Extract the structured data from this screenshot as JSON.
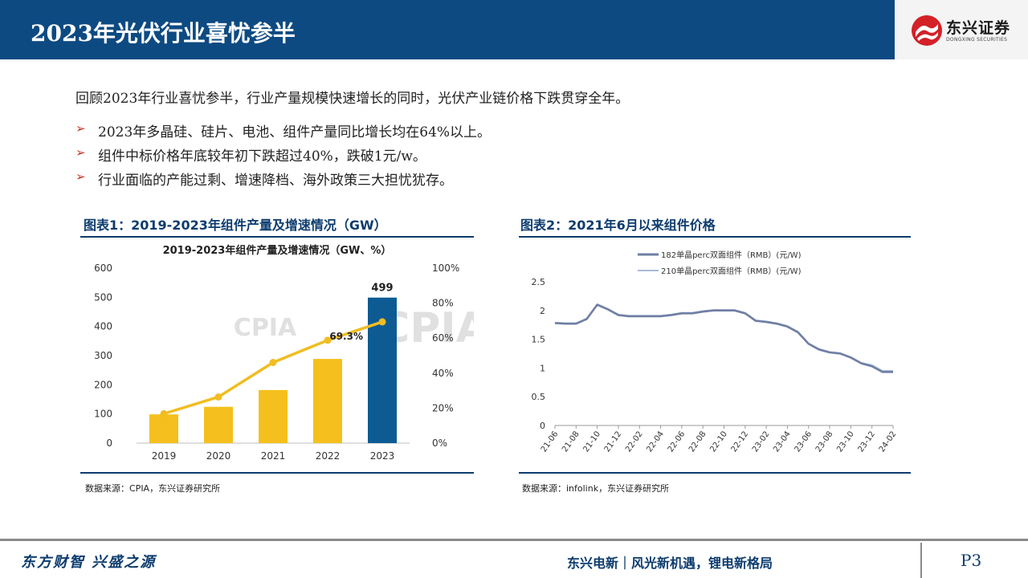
{
  "header": {
    "title": "2023年光伏行业喜忧参半",
    "logo_cn": "东兴证券",
    "logo_en": "DONGXING SECURITIES"
  },
  "intro": "回顾2023年行业喜忧参半，行业产量规模快速增长的同时，光伏产业链价格下跌贯穿全年。",
  "bullets": [
    "2023年多晶硅、硅片、电池、组件产量同比增长均在64%以上。",
    "组件中标价格年底较年初下跌超过40%，跌破1元/w。",
    "行业面临的产能过剩、增速降档、海外政策三大担忧犹存。"
  ],
  "bullet_symbol": "➢",
  "chart1": {
    "panel_title": "图表1：2019-2023年组件产量及增速情况（GW）",
    "source": "数据来源：CPIA，东兴证券研究所"
  },
  "chart2": {
    "panel_title": "图表2：2021年6月以来组件价格",
    "source": "数据来源：infolink，东兴证券研究所"
  },
  "chart_data": [
    {
      "type": "bar",
      "title": "2019-2023年组件产量及增速情况（GW、%）",
      "categories": [
        "2019",
        "2020",
        "2021",
        "2022",
        "2023"
      ],
      "series": [
        {
          "name": "",
          "kind": "bar",
          "axis": "left",
          "values": [
            98.6,
            124.6,
            182,
            288.7,
            499
          ]
        },
        {
          "name": "",
          "kind": "line",
          "axis": "right",
          "values": [
            16.8,
            26.4,
            46.1,
            58.8,
            69.3
          ]
        }
      ],
      "data_labels": [
        {
          "series": 0,
          "index": 4,
          "text": "499"
        },
        {
          "series": 1,
          "index": 4,
          "text": "69.3%"
        }
      ],
      "yticks_left": [
        "0",
        "100",
        "200",
        "300",
        "400",
        "500",
        "600"
      ],
      "yticks_right": [
        "0%",
        "20%",
        "40%",
        "60%",
        "80%",
        "100%"
      ],
      "ylim_left": [
        0,
        600
      ],
      "ylim_right": [
        0,
        100
      ],
      "watermark": "CPIA",
      "colors": {
        "bar": "#f5c01d",
        "bar_highlight": "#0e5b94",
        "line": "#f0bd22",
        "watermark": "#c8c8c8"
      },
      "grid": false
    },
    {
      "type": "line",
      "title": "",
      "x": [
        "21-06",
        "21-07",
        "21-08",
        "21-09",
        "21-10",
        "21-11",
        "21-12",
        "22-01",
        "22-02",
        "22-03",
        "22-04",
        "22-05",
        "22-06",
        "22-07",
        "22-08",
        "22-09",
        "22-10",
        "22-11",
        "22-12",
        "23-01",
        "23-02",
        "23-03",
        "23-04",
        "23-05",
        "23-06",
        "23-07",
        "23-08",
        "23-09",
        "23-10",
        "23-11",
        "23-12",
        "24-01",
        "24-02"
      ],
      "xticks": [
        "21-06",
        "21-08",
        "21-10",
        "21-12",
        "22-02",
        "22-04",
        "22-06",
        "22-08",
        "22-10",
        "22-12",
        "23-02",
        "23-04",
        "23-06",
        "23-08",
        "23-10",
        "23-12",
        "24-02"
      ],
      "series": [
        {
          "name": "182单晶perc双面组件（RMB）(元/W)",
          "values": [
            1.78,
            1.77,
            1.77,
            1.85,
            2.1,
            2.02,
            1.92,
            1.9,
            1.9,
            1.9,
            1.9,
            1.92,
            1.95,
            1.95,
            1.98,
            2.0,
            2.0,
            2.0,
            1.95,
            1.82,
            1.8,
            1.77,
            1.72,
            1.62,
            1.42,
            1.32,
            1.27,
            1.25,
            1.18,
            1.08,
            1.03,
            0.93,
            0.93
          ]
        },
        {
          "name": "210单晶perc双面组件（RMB）(元/W)",
          "values": [
            1.79,
            1.78,
            1.78,
            1.86,
            2.11,
            2.03,
            1.93,
            1.91,
            1.91,
            1.91,
            1.91,
            1.93,
            1.96,
            1.96,
            1.99,
            2.01,
            2.01,
            2.01,
            1.96,
            1.83,
            1.81,
            1.78,
            1.73,
            1.63,
            1.43,
            1.33,
            1.28,
            1.26,
            1.19,
            1.09,
            1.05,
            0.95,
            0.95
          ]
        }
      ],
      "yticks": [
        "0",
        "0.5",
        "1",
        "1.5",
        "2",
        "2.5"
      ],
      "ylim": [
        0,
        2.5
      ],
      "legend": "top-center",
      "colors": {
        "s1": "#6f7ea3",
        "s2": "#a9bad6"
      },
      "grid": false
    }
  ],
  "footer": {
    "left": "东方财智 兴盛之源",
    "right": "东兴电新｜风光新机遇，锂电新格局",
    "page": "P3"
  }
}
